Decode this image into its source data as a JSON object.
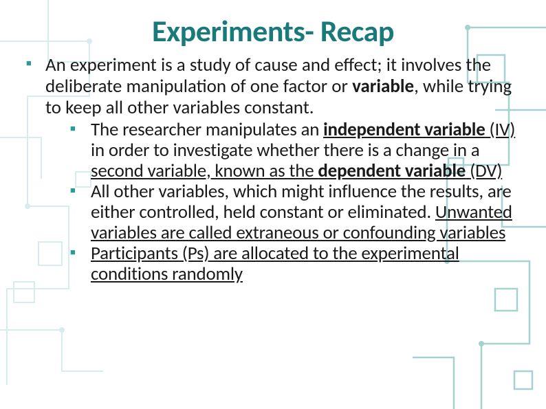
{
  "colors": {
    "title": "#1a7a7a",
    "bullet": "#2a9a9a",
    "text": "#1a1a1a",
    "circuit_light": "#a8d8d8",
    "circuit_dark": "#3a9a9a",
    "background": "#ffffff"
  },
  "typography": {
    "title_fontsize": 44,
    "body_fontsize": 27,
    "sub_fontsize": 27,
    "family": "Calibri"
  },
  "title": "Experiments- Recap",
  "main": {
    "text_segments": [
      {
        "t": "An experiment is a study of cause and effect; it involves the deliberate manipulation of one factor or "
      },
      {
        "t": "variable",
        "b": true
      },
      {
        "t": ", while trying to keep all other variables constant."
      }
    ],
    "sub": [
      {
        "segments": [
          {
            "t": "The researcher manipulates an "
          },
          {
            "t": "independent variable",
            "b": true,
            "u": true
          },
          {
            "t": " (IV)",
            "u": true
          },
          {
            "t": " in order to investigate whether there is a change in a "
          },
          {
            "t": "second variable, known as the ",
            "u": true
          },
          {
            "t": "dependent variable",
            "b": true,
            "u": true
          },
          {
            "t": " (DV)",
            "u": true
          }
        ]
      },
      {
        "segments": [
          {
            "t": "All other variables, which might influence the results, are either controlled, held constant or eliminated. "
          },
          {
            "t": "Unwanted variables are called extraneous or confounding variables",
            "u": true
          }
        ]
      },
      {
        "segments": [
          {
            "t": "Participants (Ps) are allocated to the experimental conditions randomly",
            "u": true
          }
        ]
      }
    ]
  }
}
